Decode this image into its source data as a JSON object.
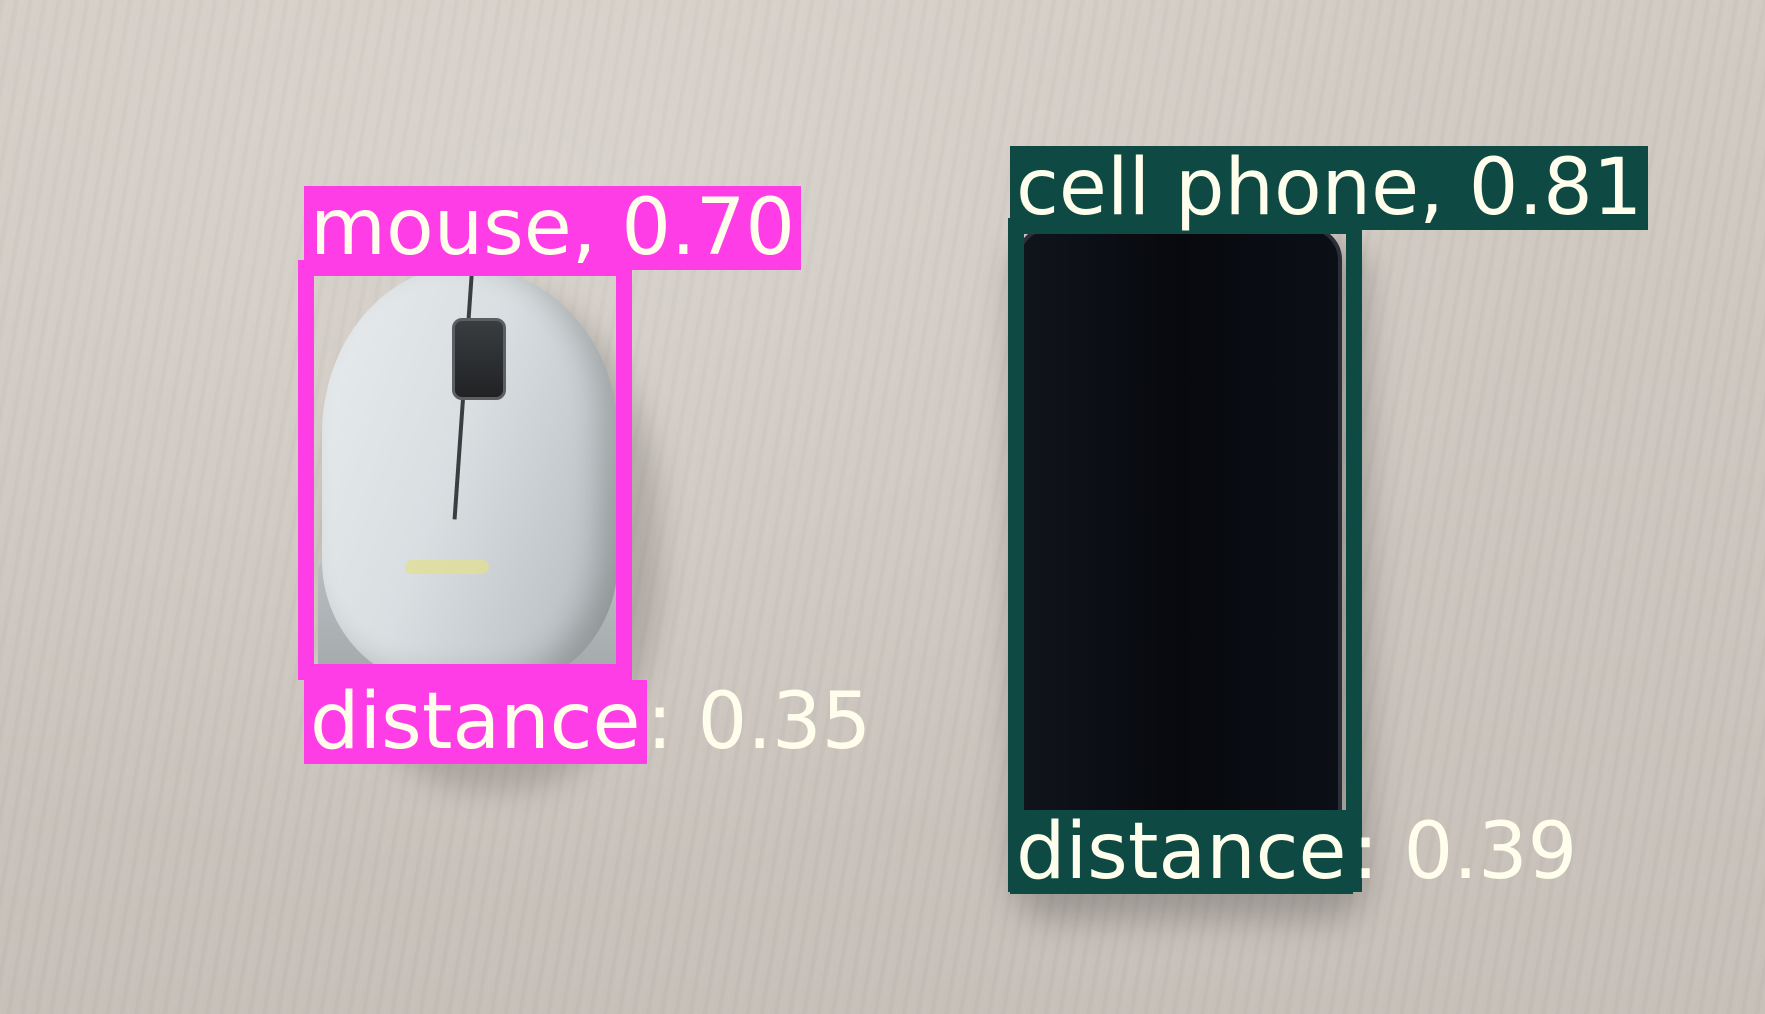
{
  "detections": [
    {
      "label": "mouse, 0.70",
      "distance_label": "distance",
      "distance_value": ": 0.35",
      "color": "#ff3de6"
    },
    {
      "label": "cell phone, 0.81",
      "distance_label": "distance",
      "distance_value": ": 0.39",
      "color": "#0e4a43"
    }
  ]
}
